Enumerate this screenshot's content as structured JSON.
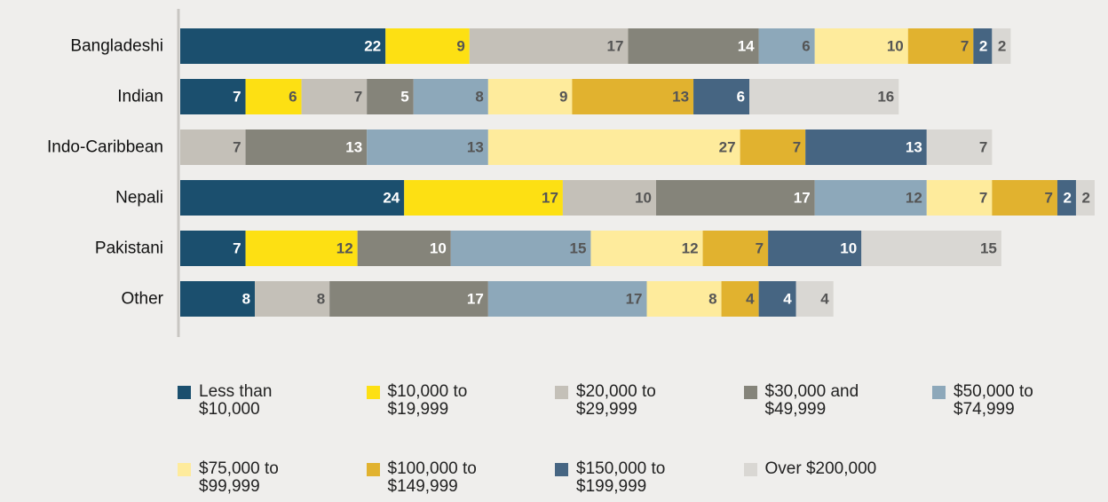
{
  "chart_data": {
    "type": "stacked-bar",
    "orientation": "horizontal",
    "categories": [
      "Bangladeshi",
      "Indian",
      "Indo-Caribbean",
      "Nepali",
      "Pakistani",
      "Other"
    ],
    "series": [
      {
        "name": "Less than $10,000",
        "color": "#1b4f6e",
        "values": [
          22,
          7,
          null,
          24,
          7,
          8
        ]
      },
      {
        "name": "$10,000 to $19,999",
        "color": "#fde013",
        "values": [
          9,
          6,
          null,
          17,
          12,
          null
        ]
      },
      {
        "name": "$20,000 to $29,999",
        "color": "#c4c0b8",
        "values": [
          17,
          7,
          7,
          10,
          null,
          8
        ]
      },
      {
        "name": "$30,000 and $49,999",
        "color": "#85847a",
        "values": [
          14,
          5,
          13,
          17,
          10,
          17
        ]
      },
      {
        "name": "$50,000 to $74,999",
        "color": "#8da8ba",
        "values": [
          6,
          8,
          13,
          12,
          15,
          17
        ]
      },
      {
        "name": "$75,000 to $99,999",
        "color": "#feeb9c",
        "values": [
          10,
          9,
          27,
          7,
          12,
          8
        ]
      },
      {
        "name": "$100,000 to $149,999",
        "color": "#e1b22f",
        "values": [
          7,
          13,
          7,
          7,
          7,
          4
        ]
      },
      {
        "name": "$150,000 to $199,999",
        "color": "#466582",
        "values": [
          2,
          6,
          13,
          2,
          10,
          4
        ]
      },
      {
        "name": "Over $200,000",
        "color": "#d9d7d3",
        "values": [
          2,
          16,
          7,
          2,
          15,
          4
        ]
      }
    ]
  }
}
